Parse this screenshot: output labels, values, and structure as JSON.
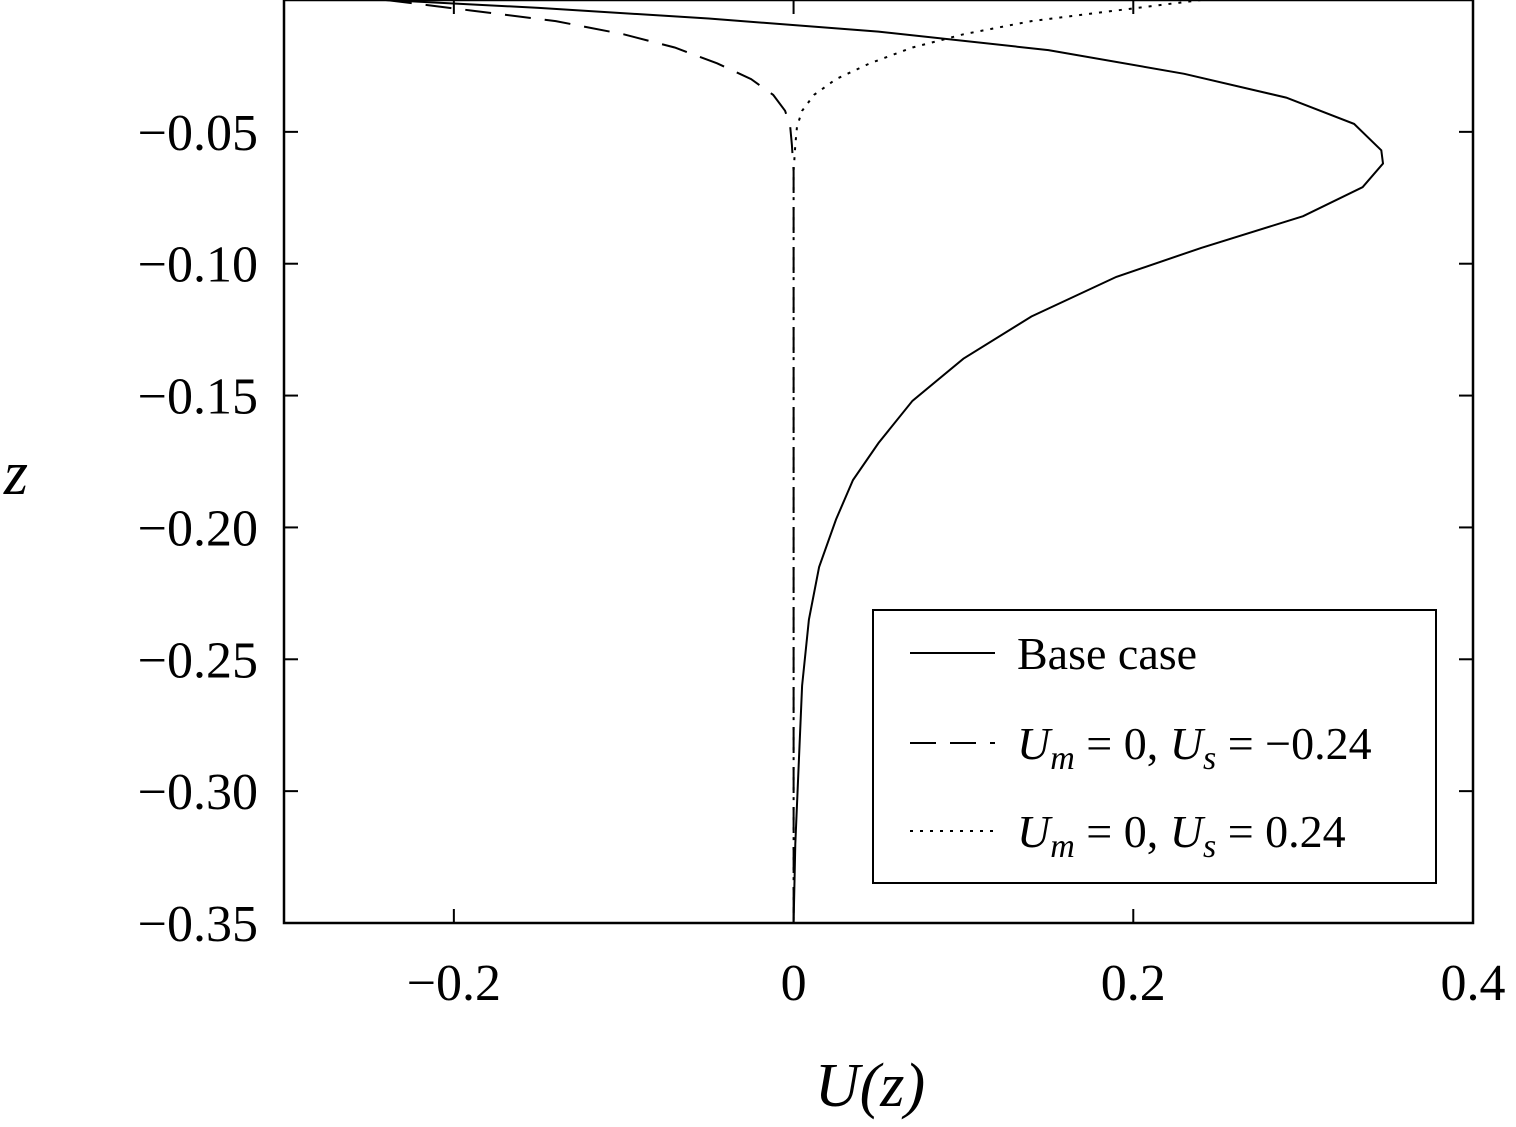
{
  "chart_data": {
    "type": "line",
    "title": "",
    "xlabel": "U(z)",
    "ylabel": "z",
    "xlim": [
      -0.3,
      0.4
    ],
    "ylim": [
      -0.35,
      0.0
    ],
    "xticks": [
      -0.2,
      0,
      0.2,
      0.4
    ],
    "xtick_labels": [
      "−0.2",
      "0",
      "0.2",
      "0.4"
    ],
    "yticks": [
      -0.05,
      -0.1,
      -0.15,
      -0.2,
      -0.25,
      -0.3,
      -0.35
    ],
    "ytick_labels": [
      "−0.05",
      "−0.10",
      "−0.15",
      "−0.20",
      "−0.25",
      "−0.30",
      "−0.35"
    ],
    "grid": false,
    "legend_position": "bottom-right",
    "series": [
      {
        "name": "Base case",
        "style": "solid",
        "points": [
          [
            -0.24,
            0.0
          ],
          [
            -0.15,
            -0.003
          ],
          [
            -0.05,
            -0.007
          ],
          [
            0.05,
            -0.012
          ],
          [
            0.15,
            -0.019
          ],
          [
            0.23,
            -0.028
          ],
          [
            0.29,
            -0.037
          ],
          [
            0.33,
            -0.047
          ],
          [
            0.346,
            -0.057
          ],
          [
            0.347,
            -0.062
          ],
          [
            0.335,
            -0.071
          ],
          [
            0.3,
            -0.082
          ],
          [
            0.24,
            -0.094
          ],
          [
            0.19,
            -0.105
          ],
          [
            0.14,
            -0.12
          ],
          [
            0.1,
            -0.136
          ],
          [
            0.07,
            -0.152
          ],
          [
            0.05,
            -0.168
          ],
          [
            0.035,
            -0.182
          ],
          [
            0.025,
            -0.197
          ],
          [
            0.015,
            -0.215
          ],
          [
            0.009,
            -0.235
          ],
          [
            0.005,
            -0.26
          ],
          [
            0.003,
            -0.29
          ],
          [
            0.001,
            -0.32
          ],
          [
            0.0,
            -0.35
          ]
        ]
      },
      {
        "name": "U_m = 0, U_s = −0.24",
        "legend_parts": [
          "U",
          "m",
          " = 0, ",
          "U",
          "s",
          " = −0.24"
        ],
        "style": "dashed",
        "points": [
          [
            -0.24,
            0.0
          ],
          [
            -0.19,
            -0.004
          ],
          [
            -0.14,
            -0.008
          ],
          [
            -0.1,
            -0.013
          ],
          [
            -0.07,
            -0.018
          ],
          [
            -0.045,
            -0.024
          ],
          [
            -0.025,
            -0.03
          ],
          [
            -0.012,
            -0.036
          ],
          [
            -0.005,
            -0.042
          ],
          [
            -0.002,
            -0.048
          ],
          [
            -0.001,
            -0.055
          ],
          [
            0.0,
            -0.065
          ],
          [
            0.0,
            -0.35
          ]
        ]
      },
      {
        "name": "U_m = 0, U_s = 0.24",
        "legend_parts": [
          "U",
          "m",
          " = 0, ",
          "U",
          "s",
          " = 0.24"
        ],
        "style": "dotted",
        "points": [
          [
            0.24,
            0.0
          ],
          [
            0.19,
            -0.004
          ],
          [
            0.14,
            -0.008
          ],
          [
            0.1,
            -0.013
          ],
          [
            0.07,
            -0.018
          ],
          [
            0.045,
            -0.024
          ],
          [
            0.025,
            -0.03
          ],
          [
            0.012,
            -0.036
          ],
          [
            0.005,
            -0.042
          ],
          [
            0.002,
            -0.048
          ],
          [
            0.001,
            -0.055
          ],
          [
            0.0,
            -0.065
          ],
          [
            0.0,
            -0.35
          ]
        ]
      }
    ]
  }
}
